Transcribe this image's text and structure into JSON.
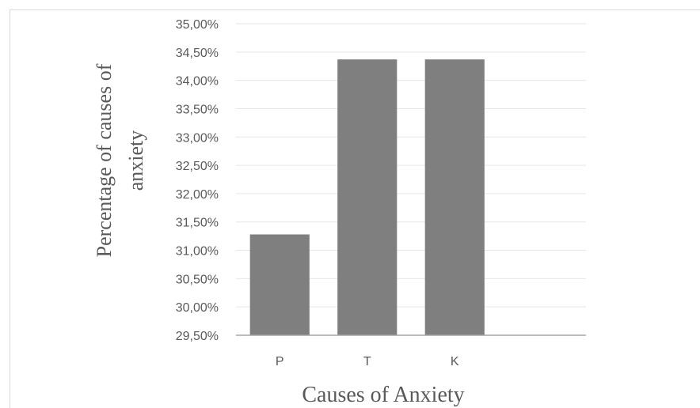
{
  "chart_data": {
    "type": "bar",
    "categories": [
      "P",
      "T",
      "K",
      ""
    ],
    "values": [
      31.28,
      34.37,
      34.37,
      null
    ],
    "ylabel": "Percentage of causes of anxiety",
    "ylabel_lines": [
      "Percentage of causes of",
      "anxiety"
    ],
    "xlabel": "Causes of Anxiety",
    "ylim": [
      29.5,
      35.0
    ],
    "ytick_step": 0.5,
    "ytick_labels": [
      "29,50%",
      "30,00%",
      "30,50%",
      "31,00%",
      "31,50%",
      "32,00%",
      "32,50%",
      "33,00%",
      "33,50%",
      "34,00%",
      "34,50%",
      "35,00%"
    ],
    "grid": true,
    "legend": "none",
    "colors": {
      "bar": "#7f7f7f",
      "grid": "#e6e6e6",
      "axis": "#a6a6a6",
      "text": "#595959"
    }
  }
}
